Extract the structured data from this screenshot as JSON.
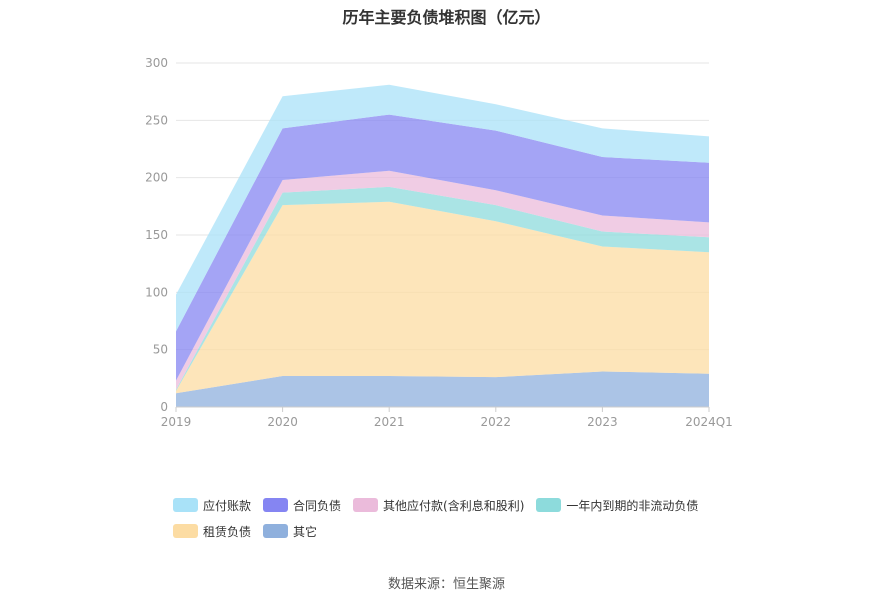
{
  "chart_data": {
    "type": "area",
    "stacked": true,
    "title": "历年主要负债堆积图（亿元）",
    "categories": [
      "2019",
      "2020",
      "2021",
      "2022",
      "2023",
      "2024Q1"
    ],
    "ylim": [
      0,
      300
    ],
    "yticks": [
      "0",
      "50",
      "100",
      "150",
      "200",
      "250",
      "300"
    ],
    "grid": true,
    "legend_position": "bottom",
    "series": [
      {
        "name": "其它",
        "color": "#8fb0dd",
        "values": [
          12,
          27,
          27,
          26,
          31,
          29
        ]
      },
      {
        "name": "租赁负债",
        "color": "#fcdca3",
        "values": [
          2,
          149,
          152,
          136,
          109,
          106
        ]
      },
      {
        "name": "一年内到期的非流动负债",
        "color": "#8ddbdc",
        "values": [
          1,
          11,
          13,
          14,
          13,
          13
        ]
      },
      {
        "name": "其他应付款(含利息和股利)",
        "color": "#ebbbdb",
        "values": [
          8,
          11,
          14,
          13,
          14,
          13
        ]
      },
      {
        "name": "合同负债",
        "color": "#8585f2",
        "values": [
          43,
          45,
          49,
          52,
          51,
          52
        ]
      },
      {
        "name": "应付账款",
        "color": "#a9e2f8",
        "values": [
          32,
          28,
          26,
          23,
          25,
          23
        ]
      }
    ]
  },
  "legend": {
    "rows": [
      [
        {
          "label": "应付账款",
          "color": "#a9e2f8"
        },
        {
          "label": "合同负债",
          "color": "#8585f2"
        },
        {
          "label": "其他应付款(含利息和股利)",
          "color": "#ebbbdb"
        },
        {
          "label": "一年内到期的非流动负债",
          "color": "#8ddbdc"
        }
      ],
      [
        {
          "label": "租赁负债",
          "color": "#fcdca3"
        },
        {
          "label": "其它",
          "color": "#8fb0dd"
        }
      ]
    ]
  },
  "source_text": "数据来源：恒生聚源"
}
